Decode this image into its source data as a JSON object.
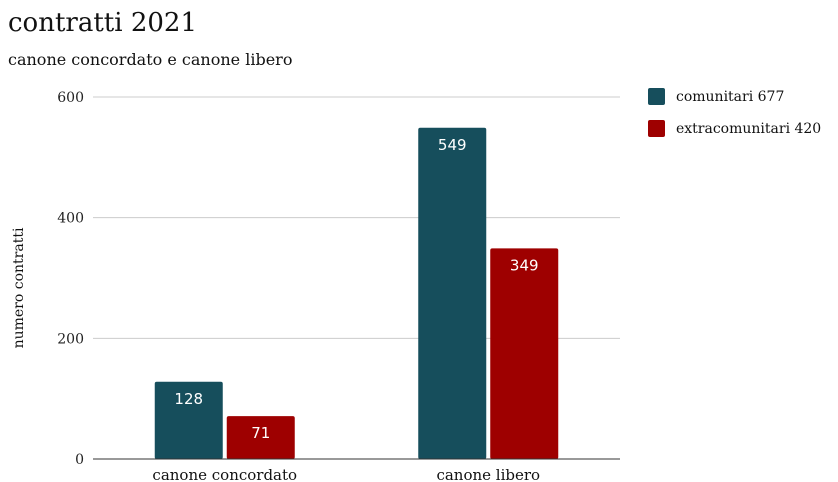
{
  "chart_data": {
    "type": "bar",
    "title": "contratti 2021",
    "subtitle": "canone concordato e canone libero",
    "xlabel": "",
    "ylabel": "numero contratti",
    "categories": [
      "canone concordato",
      "canone libero"
    ],
    "series": [
      {
        "name": "comunitari 677",
        "values": [
          128,
          549
        ],
        "color": "#164e5c"
      },
      {
        "name": "extracomunitari 420",
        "values": [
          71,
          349
        ],
        "color": "#9e0000"
      }
    ],
    "ylim": [
      0,
      600
    ],
    "yticks": [
      "0",
      "200",
      "400",
      "600"
    ],
    "grid": true,
    "legend_position": "top-right"
  }
}
